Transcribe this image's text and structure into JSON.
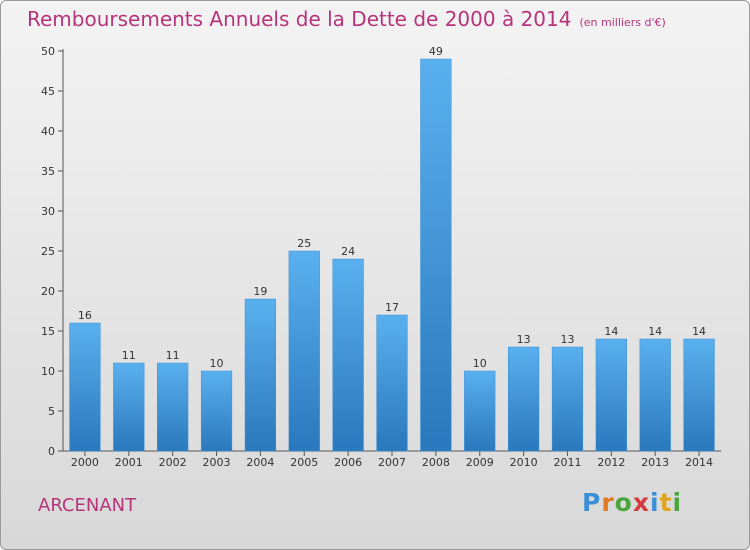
{
  "title": "Remboursements Annuels de la Dette de 2000 à 2014",
  "unit_note": "(en milliers d'€)",
  "commune": "ARCENANT",
  "logo": {
    "letters": [
      "P",
      "r",
      "o",
      "x",
      "i",
      "t",
      "i"
    ],
    "colors": [
      "#3a8fd6",
      "#e07b1f",
      "#4aa53b",
      "#d43b3b",
      "#3a8fd6",
      "#e0a51f",
      "#4aa53b"
    ]
  },
  "chart_data": {
    "type": "bar",
    "title": "Remboursements Annuels de la Dette de 2000 à 2014",
    "xlabel": "",
    "ylabel": "",
    "categories": [
      "2000",
      "2001",
      "2002",
      "2003",
      "2004",
      "2005",
      "2006",
      "2007",
      "2008",
      "2009",
      "2010",
      "2011",
      "2012",
      "2013",
      "2014"
    ],
    "values": [
      16,
      11,
      11,
      10,
      19,
      25,
      24,
      17,
      49,
      10,
      13,
      13,
      14,
      14,
      14
    ],
    "ylim": [
      0,
      50
    ],
    "yticks": [
      0,
      5,
      10,
      15,
      20,
      25,
      30,
      35,
      40,
      45,
      50
    ],
    "grid": false,
    "bar_color": "#4aa3e6",
    "bar_color_dark": "#2f7fc4"
  }
}
